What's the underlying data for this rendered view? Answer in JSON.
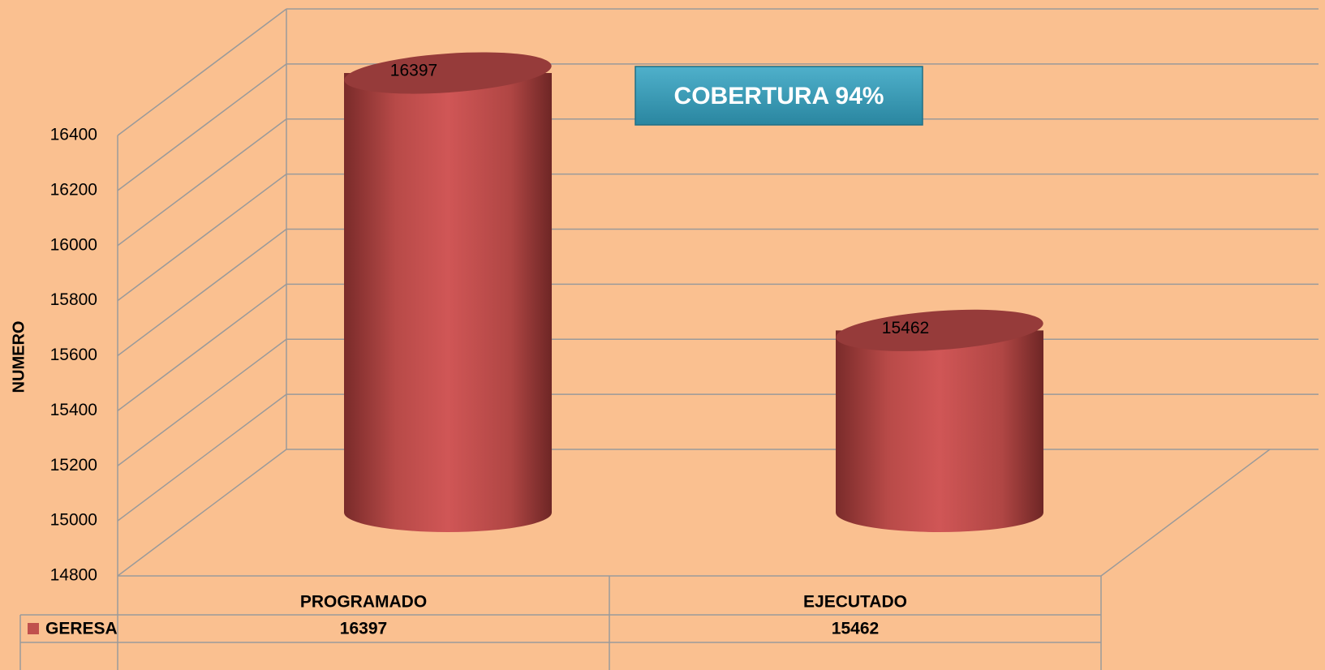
{
  "chart_data": {
    "type": "bar",
    "y_label": "NUMERO",
    "annotation": "COBERTURA 94%",
    "categories": [
      "PROGRAMADO",
      "EJECUTADO"
    ],
    "series": [
      {
        "name": "GERESA",
        "color": "#c0504d",
        "values": [
          16397,
          15462
        ]
      }
    ],
    "ylim": [
      14800,
      16400
    ],
    "yticks": [
      14800,
      15000,
      15200,
      15400,
      15600,
      15800,
      16000,
      16200,
      16400
    ],
    "grid": true
  }
}
